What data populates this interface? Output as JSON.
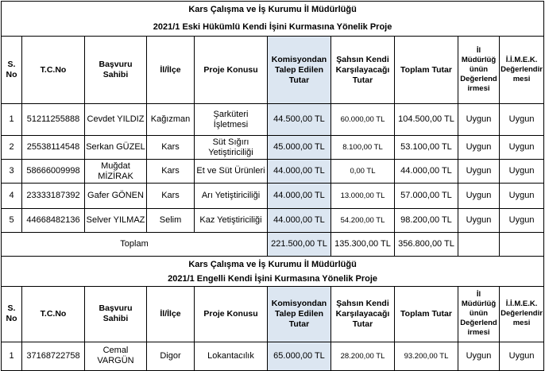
{
  "sections": [
    {
      "title": "Kars Çalışma ve İş Kurumu İl Müdürlüğü",
      "subtitle": "2021/1  Eski Hükümlü Kendi İşini Kurmasına Yönelik Proje",
      "headers": [
        "S. No",
        "T.C.No",
        "Başvuru Sahibi",
        "İl/İlçe",
        "Proje Konusu",
        "Komisyondan Talep Edilen Tutar",
        "Şahsın Kendi Karşılayacağı Tutar",
        "Toplam Tutar",
        "İl Müdürlüğünün Değerlendirmesi",
        "İ.İ.M.E.K. Değerlendirmesi"
      ],
      "rows": [
        [
          "1",
          "51211255888",
          "Cevdet YILDIZ",
          "Kağızman",
          "Şarküteri İşletmesi",
          "44.500,00 TL",
          "60.000,00 TL",
          "104.500,00 TL",
          "Uygun",
          "Uygun"
        ],
        [
          "2",
          "25538114548",
          "Serkan GÜZEL",
          "Kars",
          "Süt Sığırı Yetiştiriciliği",
          "45.000,00 TL",
          "8.100,00 TL",
          "53.100,00 TL",
          "Uygun",
          "Uygun"
        ],
        [
          "3",
          "58666009998",
          "Muğdat MİZİRAK",
          "Kars",
          "Et ve Süt Ürünleri",
          "44.000,00 TL",
          "0,00 TL",
          "44.000,00 TL",
          "Uygun",
          "Uygun"
        ],
        [
          "4",
          "23333187392",
          "Gafer GÖNEN",
          "Kars",
          "Arı Yetiştiriciliği",
          "44.000,00 TL",
          "13.000,00 TL",
          "57.000,00 TL",
          "Uygun",
          "Uygun"
        ],
        [
          "5",
          "44668482136",
          "Selver YILMAZ",
          "Selim",
          "Kaz Yetiştiriciliği",
          "44.000,00 TL",
          "54.200,00 TL",
          "98.200,00 TL",
          "Uygun",
          "Uygun"
        ]
      ],
      "total": {
        "label": "Toplam",
        "values": [
          "221.500,00 TL",
          "135.300,00 TL",
          "356.800,00 TL"
        ]
      }
    },
    {
      "title": "Kars Çalışma ve İş Kurumu İl Müdürlüğü",
      "subtitle": "2021/1  Engelli Kendi İşini Kurmasına Yönelik Proje",
      "headers": [
        "S. No",
        "T.C.No",
        "Başvuru Sahibi",
        "İl/İlçe",
        "Proje Konusu",
        "Komisyondan Talep Edilen Tutar",
        "Şahsın Kendi Karşılayacağı Tutar",
        "Toplam Tutar",
        "İl Müdürlüğünün Değerlendirmesi",
        "İ.İ.M.E.K. Değerlendirmesi"
      ],
      "rows": [
        [
          "1",
          "37168722758",
          "Cemal VARGÜN",
          "Digor",
          "Lokantacılık",
          "65.000,00 TL",
          "28.200,00 TL",
          "93.200,00 TL",
          "Uygun",
          "Uygun"
        ]
      ]
    }
  ]
}
